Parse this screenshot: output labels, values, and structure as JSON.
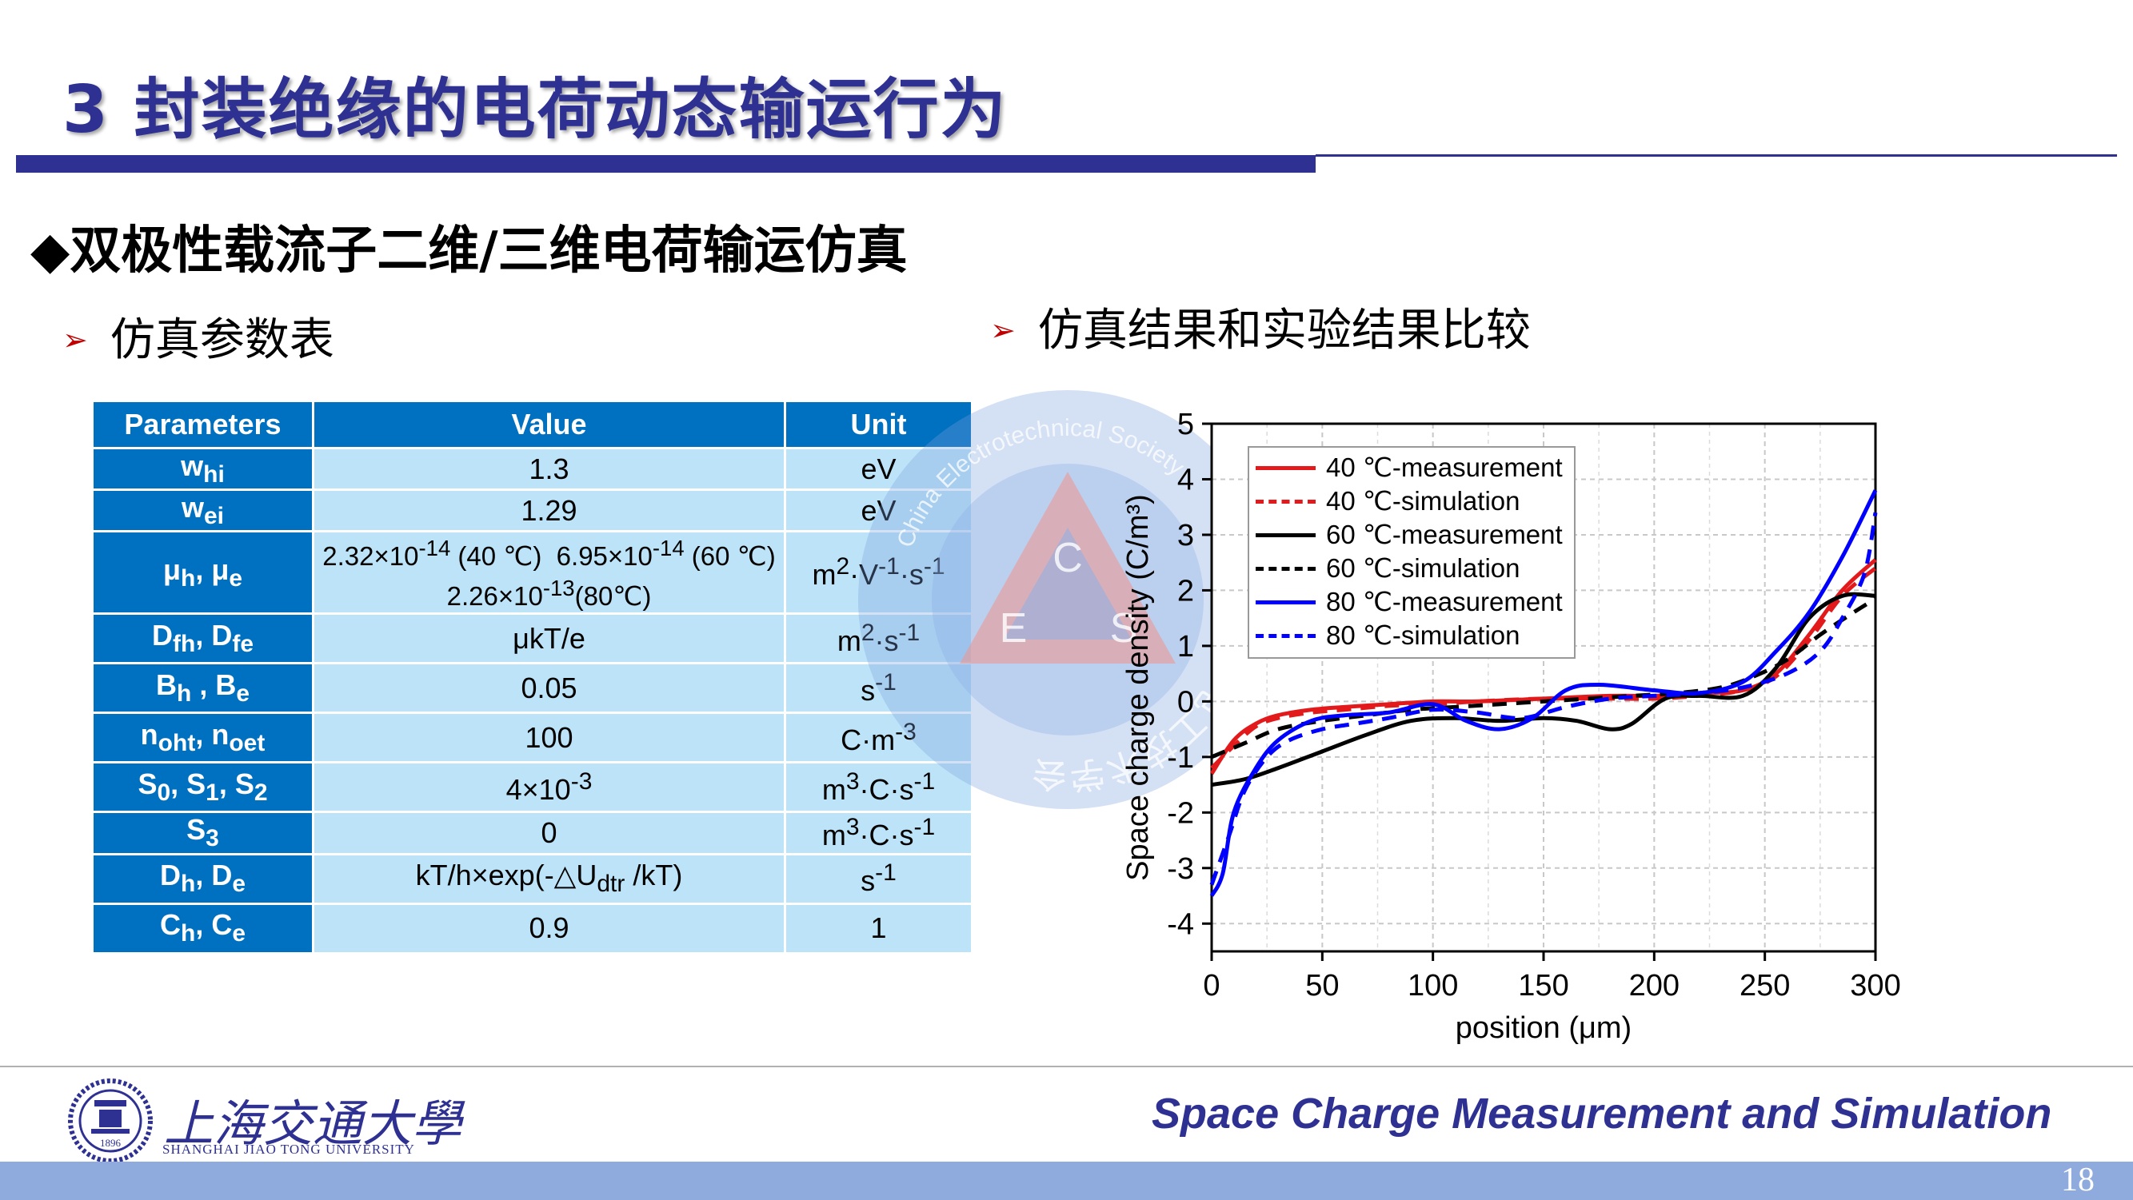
{
  "header": {
    "title": "3 封装绝缘的电荷动态输运行为"
  },
  "section": {
    "heading": "双极性载流子二维/三维电荷输运仿真",
    "left_label": "仿真参数表",
    "right_label": "仿真结果和实验结果比较"
  },
  "params_table": {
    "headers": [
      "Parameters",
      "Value",
      "Unit"
    ],
    "rows": [
      {
        "param_html": "w<sub>hi</sub>",
        "value_html": "1.3",
        "unit_html": "eV"
      },
      {
        "param_html": "w<sub>ei</sub>",
        "value_html": "1.29",
        "unit_html": "eV"
      },
      {
        "param_html": "μ<sub>h</sub>, μ<sub>e</sub>",
        "value_html": "2.32×10<sup>-14</sup> (40 ℃)&nbsp; 6.95×10<sup>-14</sup> (60 ℃) 2.26×10<sup>-13</sup>(80℃)",
        "unit_html": "m<sup>2</sup>·V<sup>-1</sup>·s<sup>-1</sup>"
      },
      {
        "param_html": "D<sub>fh</sub>, D<sub>fe</sub>",
        "value_html": "μkT/e",
        "unit_html": "m<sup>2</sup>·s<sup>-1</sup>"
      },
      {
        "param_html": "B<sub>h</sub> , B<sub>e</sub>",
        "value_html": "0.05",
        "unit_html": "s<sup>-1</sup>"
      },
      {
        "param_html": "n<sub>oht</sub>, n<sub>oet</sub>",
        "value_html": "100",
        "unit_html": "C·m<sup>-3</sup>"
      },
      {
        "param_html": "S<sub>0</sub>, S<sub>1</sub>, S<sub>2</sub>",
        "value_html": "4×10<sup>-3</sup>",
        "unit_html": "m<sup>3</sup>·C·s<sup>-1</sup>"
      },
      {
        "param_html": "S<sub>3</sub>",
        "value_html": "0",
        "unit_html": "m<sup>3</sup>·C·s<sup>-1</sup>"
      },
      {
        "param_html": "D<sub>h</sub>, D<sub>e</sub>",
        "value_html": "kT/h×exp(-△U<sub>dtr</sub> /kT)",
        "unit_html": "s<sup>-1</sup>"
      },
      {
        "param_html": "C<sub>h</sub>, C<sub>e</sub>",
        "value_html": "0.9",
        "unit_html": "1"
      }
    ]
  },
  "watermark": {
    "ring_text": "中国电工技术学会",
    "ring_text_en": "China Electrotechnical Society",
    "letters": [
      "C",
      "E",
      "S"
    ]
  },
  "chart_data": {
    "type": "line",
    "title": "",
    "xlabel": "position (μm)",
    "ylabel": "Space charge density (C/m³)",
    "xlim": [
      0,
      300
    ],
    "ylim": [
      -4.5,
      5
    ],
    "xticks": [
      0,
      50,
      100,
      150,
      200,
      250,
      300
    ],
    "yticks": [
      -4,
      -3,
      -2,
      -1,
      0,
      1,
      2,
      3,
      4,
      5
    ],
    "grid": true,
    "legend_position": "top-left",
    "series": [
      {
        "name": "40 ℃-measurement",
        "color": "#e31a1c",
        "dash": false,
        "x": [
          0,
          10,
          20,
          30,
          45,
          60,
          80,
          100,
          120,
          150,
          180,
          200,
          220,
          240,
          255,
          270,
          285,
          300
        ],
        "y": [
          -1.3,
          -0.7,
          -0.4,
          -0.25,
          -0.15,
          -0.1,
          -0.05,
          0,
          0,
          0.05,
          0.1,
          0.1,
          0.15,
          0.2,
          0.5,
          1.2,
          2.0,
          2.55
        ]
      },
      {
        "name": "40 ℃-simulation",
        "color": "#e31a1c",
        "dash": true,
        "x": [
          0,
          10,
          20,
          30,
          45,
          60,
          80,
          100,
          120,
          150,
          180,
          200,
          220,
          240,
          255,
          270,
          285,
          300
        ],
        "y": [
          -1.2,
          -0.8,
          -0.45,
          -0.3,
          -0.2,
          -0.15,
          -0.08,
          -0.05,
          0,
          0.05,
          0.05,
          0.05,
          0.1,
          0.2,
          0.45,
          1.1,
          1.9,
          2.4
        ]
      },
      {
        "name": "60 ℃-measurement",
        "color": "#000000",
        "dash": false,
        "x": [
          0,
          15,
          30,
          50,
          70,
          90,
          110,
          130,
          150,
          165,
          180,
          190,
          205,
          220,
          240,
          255,
          270,
          285,
          300
        ],
        "y": [
          -1.5,
          -1.4,
          -1.2,
          -0.9,
          -0.6,
          -0.35,
          -0.3,
          -0.35,
          -0.3,
          -0.35,
          -0.5,
          -0.4,
          0.05,
          0.1,
          0.1,
          0.6,
          1.5,
          1.9,
          1.9
        ]
      },
      {
        "name": "60 ℃-simulation",
        "color": "#000000",
        "dash": true,
        "x": [
          0,
          15,
          30,
          50,
          70,
          90,
          110,
          130,
          150,
          170,
          190,
          210,
          230,
          245,
          260,
          275,
          290,
          300
        ],
        "y": [
          -1.0,
          -0.75,
          -0.5,
          -0.35,
          -0.25,
          -0.15,
          -0.1,
          -0.05,
          0,
          0.05,
          0.1,
          0.15,
          0.25,
          0.45,
          0.75,
          1.2,
          1.6,
          1.85
        ]
      },
      {
        "name": "80 ℃-measurement",
        "color": "#0000ff",
        "dash": false,
        "x": [
          0,
          5,
          10,
          20,
          30,
          45,
          60,
          80,
          100,
          115,
          130,
          145,
          160,
          175,
          200,
          220,
          240,
          255,
          270,
          285,
          300
        ],
        "y": [
          -3.5,
          -3.1,
          -2.0,
          -1.2,
          -0.7,
          -0.35,
          -0.25,
          -0.2,
          -0.05,
          -0.35,
          -0.5,
          -0.3,
          0.2,
          0.3,
          0.2,
          0.15,
          0.35,
          0.9,
          1.6,
          2.6,
          3.8
        ]
      },
      {
        "name": "80 ℃-simulation",
        "color": "#0000ff",
        "dash": true,
        "x": [
          0,
          8,
          15,
          25,
          35,
          50,
          65,
          80,
          100,
          120,
          140,
          160,
          180,
          200,
          220,
          240,
          260,
          275,
          285,
          295,
          300
        ],
        "y": [
          -3.3,
          -2.4,
          -1.6,
          -1.0,
          -0.7,
          -0.5,
          -0.4,
          -0.3,
          -0.15,
          -0.2,
          -0.3,
          -0.1,
          0.05,
          0.1,
          0.15,
          0.25,
          0.5,
          0.9,
          1.5,
          2.3,
          3.4
        ]
      }
    ]
  },
  "footer": {
    "university_cn": "上海交通大學",
    "university_en": "SHANGHAI JIAO TONG UNIVERSITY",
    "logo_year": "1896",
    "title": "Space Charge Measurement and Simulation",
    "page": "18"
  },
  "colors": {
    "brand": "#2e3192",
    "table_header": "#0070c0",
    "table_cell": "#bde3f8",
    "footer_bar": "#8faadc"
  }
}
